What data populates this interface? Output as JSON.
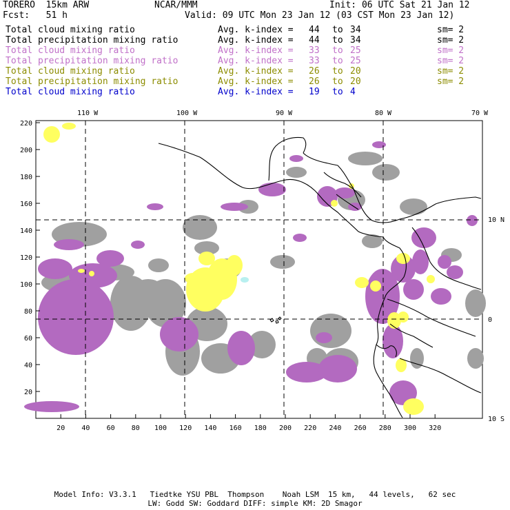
{
  "header": {
    "model": "TORERO  15km ARW",
    "org": "NCAR/MMM",
    "init": "Init: 06 UTC Sat 21 Jan 12",
    "fcst": "Fcst:   51 h",
    "valid": "Valid: 09 UTC Mon 23 Jan 12 (03 CST Mon 23 Jan 12)"
  },
  "legend": [
    {
      "field": "Total cloud mixing ratio",
      "index": "Avg. k-index =",
      "lo": "44",
      "to": "to",
      "hi": "34",
      "sm": "sm= 2",
      "color": "#000000"
    },
    {
      "field": "Total precipitation mixing ratio",
      "index": "Avg. k-index =",
      "lo": "44",
      "to": "to",
      "hi": "34",
      "sm": "sm= 2",
      "color": "#000000"
    },
    {
      "field": "Total cloud mixing ratio",
      "index": "Avg. k-index =",
      "lo": "33",
      "to": "to",
      "hi": "25",
      "sm": "sm= 2",
      "color": "#c070c8"
    },
    {
      "field": "Total precipitation mixing ratio",
      "index": "Avg. k-index =",
      "lo": "33",
      "to": "to",
      "hi": "25",
      "sm": "sm= 2",
      "color": "#c070c8"
    },
    {
      "field": "Total cloud mixing ratio",
      "index": "Avg. k-index =",
      "lo": "26",
      "to": "to",
      "hi": "20",
      "sm": "sm= 2",
      "color": "#8c8c00"
    },
    {
      "field": "Total precipitation mixing ratio",
      "index": "Avg. k-index =",
      "lo": "26",
      "to": "to",
      "hi": "20",
      "sm": "sm= 2",
      "color": "#8c8c00"
    },
    {
      "field": "Total cloud mixing ratio",
      "index": "Avg. k-index =",
      "lo": "19",
      "to": "to",
      "hi": "4",
      "sm": "",
      "color": "#0000cc"
    }
  ],
  "colors": {
    "gray": "#a0a0a0",
    "purple": "#b36ac0",
    "yellow": "#ffff60",
    "cyan": "#b8f0f0"
  },
  "axes": {
    "lon_labels": [
      "110 W",
      "100 W",
      "90 W",
      "80 W",
      "70 W"
    ],
    "lat_labels": [
      "10 N",
      "0",
      "10 S"
    ],
    "x_ticks": [
      "20",
      "40",
      "60",
      "80",
      "100",
      "120",
      "140",
      "160",
      "180",
      "200",
      "220",
      "240",
      "260",
      "280",
      "300",
      "320"
    ],
    "y_ticks": [
      "220",
      "200",
      "180",
      "160",
      "140",
      "120",
      "100",
      "80",
      "60",
      "40",
      "20"
    ]
  },
  "footer": {
    "line1": "Model Info: V3.3.1   Tiedtke YSU PBL  Thompson    Noah LSM  15 km,   44 levels,   62 sec",
    "line2": "LW: Godd SW: Goddard DIFF: simple KM: 2D Smagor"
  }
}
